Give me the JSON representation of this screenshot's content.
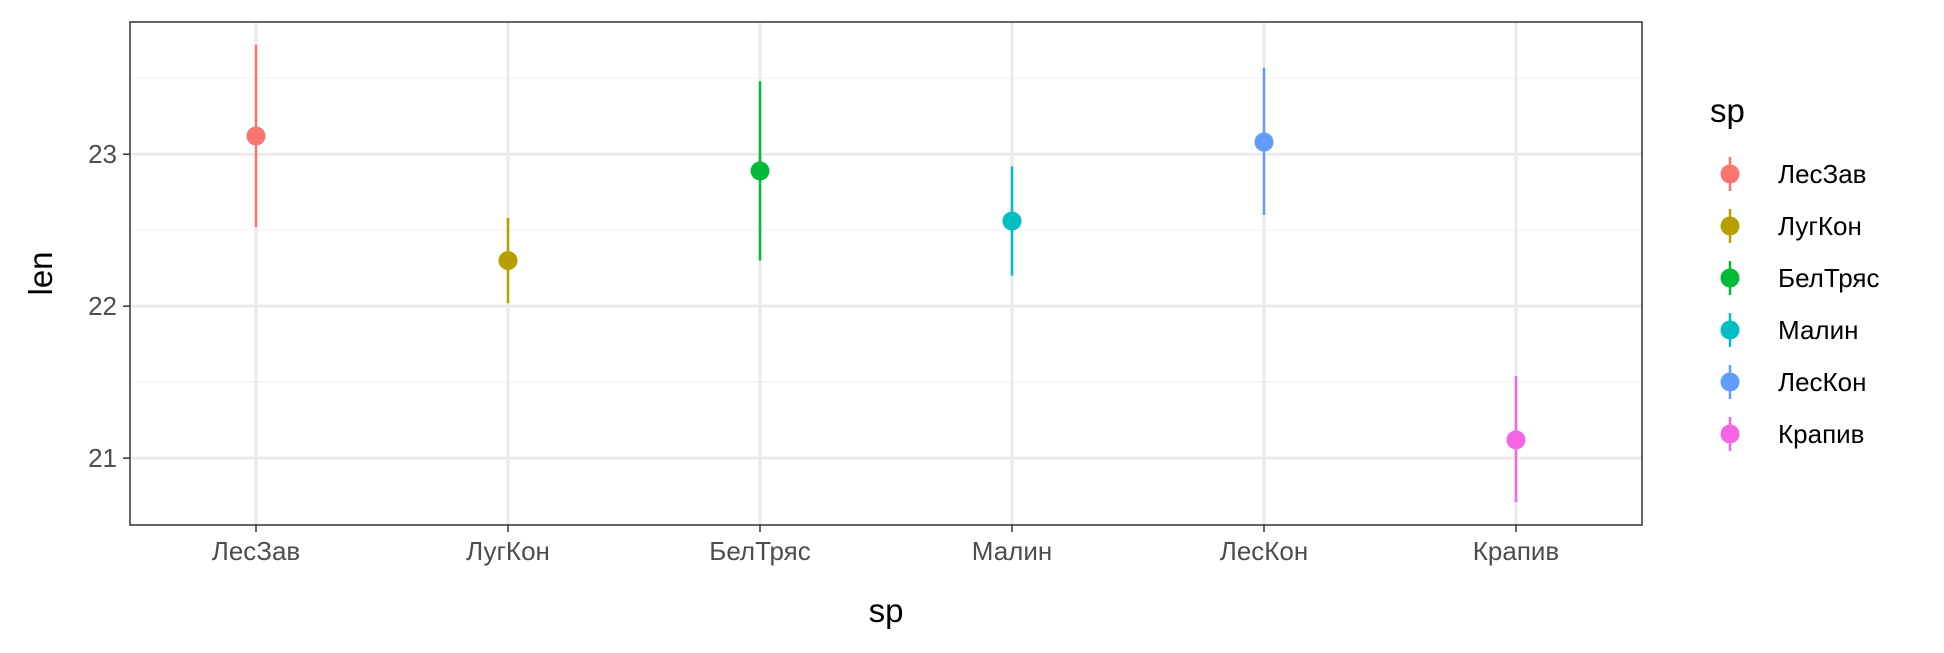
{
  "chart_data": {
    "type": "scatter",
    "style": "point-range",
    "xlabel": "sp",
    "ylabel": "len",
    "categories": [
      "ЛесЗав",
      "ЛугКон",
      "БелТряс",
      "Малин",
      "ЛесКон",
      "Крапив"
    ],
    "points": [
      {
        "category": "ЛесЗав",
        "y": 23.12,
        "ymin": 22.52,
        "ymax": 23.72,
        "color": "#F8766D"
      },
      {
        "category": "ЛугКон",
        "y": 22.3,
        "ymin": 22.02,
        "ymax": 22.58,
        "color": "#B79F00"
      },
      {
        "category": "БелТряс",
        "y": 22.89,
        "ymin": 22.3,
        "ymax": 23.48,
        "color": "#00BA38"
      },
      {
        "category": "Малин",
        "y": 22.56,
        "ymin": 22.2,
        "ymax": 22.92,
        "color": "#00BFC4"
      },
      {
        "category": "ЛесКон",
        "y": 23.08,
        "ymin": 22.6,
        "ymax": 23.57,
        "color": "#619CFF"
      },
      {
        "category": "Крапив",
        "y": 21.12,
        "ymin": 20.71,
        "ymax": 21.54,
        "color": "#F564E3"
      }
    ],
    "ylim": [
      20.56,
      23.87
    ],
    "yticks": [
      21,
      22,
      23
    ],
    "ytick_labels": [
      "21",
      "22",
      "23"
    ],
    "grid": true,
    "legend": {
      "title": "sp",
      "position": "right",
      "entries": [
        "ЛесЗав",
        "ЛугКон",
        "БелТряс",
        "Малин",
        "ЛесКон",
        "Крапив"
      ]
    },
    "colors": {
      "panel_border": "#333333",
      "grid_major": "#EBEBEB",
      "grid_minor": "#F5F5F5",
      "tick_label": "#4D4D4D"
    }
  }
}
